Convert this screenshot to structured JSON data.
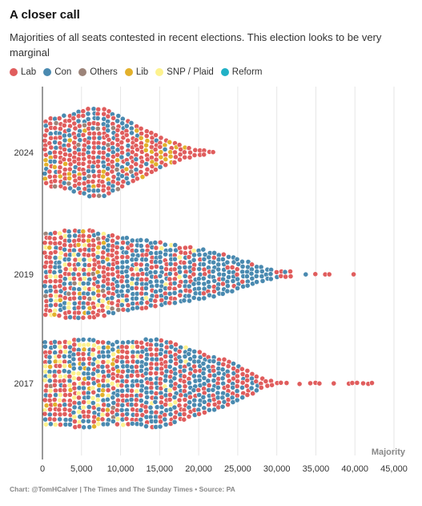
{
  "title": "A closer call",
  "subtitle": "Majorities of all seats contested in recent elections. This election looks to be very marginal",
  "footer": "Chart: @TomHCalver | The Times and The Sunday Times • Source: PA",
  "chart_data": {
    "type": "scatter",
    "subtype": "beeswarm",
    "xlabel": "Majority",
    "ylabel": "",
    "xlim": [
      0,
      45000
    ],
    "x_ticks": [
      0,
      5000,
      10000,
      15000,
      20000,
      25000,
      30000,
      35000,
      40000,
      45000
    ],
    "x_tick_labels": [
      "0",
      "5,000",
      "10,000",
      "15,000",
      "20,000",
      "25,000",
      "30,000",
      "35,000",
      "40,000",
      "45,000"
    ],
    "categories": [
      "2024",
      "2019",
      "2017"
    ],
    "legend": [
      {
        "name": "Lab",
        "color": "#e05d5d"
      },
      {
        "name": "Con",
        "color": "#4a8ab0"
      },
      {
        "name": "Others",
        "color": "#9c8479"
      },
      {
        "name": "Lib",
        "color": "#e3b12c"
      },
      {
        "name": "SNP / Plaid",
        "color": "#fdf28e"
      },
      {
        "name": "Reform",
        "color": "#21b1c6"
      }
    ],
    "grid": "vertical",
    "legend_position": "top",
    "series": [
      {
        "year": "2024",
        "max_majority": 22000,
        "spread_profile": [
          [
            0,
            0.72
          ],
          [
            2500,
            0.8
          ],
          [
            5000,
            0.93
          ],
          [
            6500,
            1.0
          ],
          [
            8000,
            0.95
          ],
          [
            10000,
            0.78
          ],
          [
            12000,
            0.62
          ],
          [
            14000,
            0.44
          ],
          [
            16000,
            0.3
          ],
          [
            18000,
            0.17
          ],
          [
            20000,
            0.1
          ],
          [
            22000,
            0.05
          ]
        ],
        "party_mix": [
          [
            0,
            {
              "Lab": 0.58,
              "Con": 0.32,
              "Lib": 0.07,
              "Others": 0.03
            }
          ],
          [
            12000,
            {
              "Lab": 0.75,
              "Con": 0.1,
              "Lib": 0.15
            }
          ],
          [
            18000,
            {
              "Lab": 0.92,
              "Lib": 0.08
            }
          ]
        ]
      },
      {
        "year": "2019",
        "max_majority": 40000,
        "spread_profile": [
          [
            0,
            0.9
          ],
          [
            2500,
            0.95
          ],
          [
            5000,
            1.0
          ],
          [
            7500,
            0.95
          ],
          [
            10000,
            0.82
          ],
          [
            13000,
            0.78
          ],
          [
            16000,
            0.68
          ],
          [
            19000,
            0.6
          ],
          [
            22000,
            0.52
          ],
          [
            25000,
            0.36
          ],
          [
            27000,
            0.24
          ],
          [
            30000,
            0.12
          ],
          [
            33000,
            0.07
          ],
          [
            36000,
            0.04
          ],
          [
            40000,
            0.03
          ]
        ],
        "party_mix": [
          [
            0,
            {
              "Lab": 0.45,
              "Con": 0.35,
              "SNP / Plaid": 0.13,
              "Lib": 0.05,
              "Others": 0.02
            }
          ],
          [
            10000,
            {
              "Con": 0.6,
              "Lab": 0.35,
              "SNP / Plaid": 0.05
            }
          ],
          [
            20000,
            {
              "Con": 0.82,
              "Lab": 0.18
            }
          ],
          [
            30000,
            {
              "Lab": 0.6,
              "Con": 0.4
            }
          ],
          [
            34000,
            {
              "Lab": 1.0
            }
          ]
        ]
      },
      {
        "year": "2017",
        "max_majority": 42500,
        "spread_profile": [
          [
            0,
            0.9
          ],
          [
            3000,
            0.95
          ],
          [
            6000,
            0.97
          ],
          [
            9000,
            0.9
          ],
          [
            12000,
            0.93
          ],
          [
            15000,
            1.0
          ],
          [
            18000,
            0.83
          ],
          [
            21000,
            0.66
          ],
          [
            24000,
            0.5
          ],
          [
            26000,
            0.34
          ],
          [
            28000,
            0.14
          ],
          [
            30000,
            0.06
          ],
          [
            34000,
            0.05
          ],
          [
            38000,
            0.04
          ],
          [
            42500,
            0.03
          ]
        ],
        "party_mix": [
          [
            0,
            {
              "Lab": 0.4,
              "Con": 0.38,
              "SNP / Plaid": 0.15,
              "Lib": 0.05,
              "Others": 0.02
            }
          ],
          [
            10000,
            {
              "Con": 0.52,
              "Lab": 0.46,
              "SNP / Plaid": 0.02
            }
          ],
          [
            20000,
            {
              "Con": 0.62,
              "Lab": 0.38
            }
          ],
          [
            26000,
            {
              "Lab": 0.6,
              "Con": 0.4
            }
          ],
          [
            29000,
            {
              "Lab": 1.0
            }
          ]
        ]
      }
    ]
  }
}
